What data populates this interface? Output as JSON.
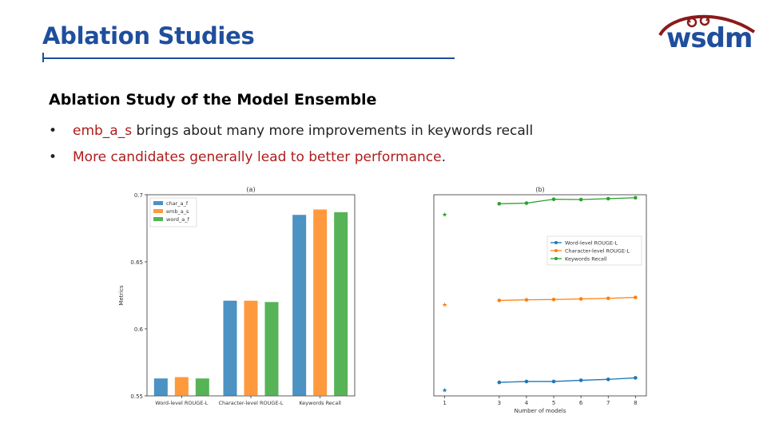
{
  "slide": {
    "title": "Ablation Studies",
    "subheading": "Ablation Study of the Model Ensemble",
    "bullets": [
      {
        "bullet": "•",
        "highlight": "emb_a_s",
        "text": " brings about many more improvements in keywords recall"
      },
      {
        "bullet": "•",
        "highlight": "More candidates generally lead to better performance",
        "text": "."
      }
    ],
    "logo_text": "wsdm"
  },
  "colors": {
    "title_blue": "#1f4e9c",
    "highlight_red": "#b01c1c",
    "blue": "#1f77b4",
    "orange": "#ff7f0e",
    "green": "#2ca02c"
  },
  "chart_data": [
    {
      "type": "bar",
      "title": "(a)",
      "ylabel": "Metrics",
      "xlabel": "",
      "categories": [
        "Word-level ROUGE-L",
        "Character-level ROUGE-L",
        "Keywords Recall"
      ],
      "ylim": [
        0.55,
        0.7
      ],
      "yticks": [
        "0.55",
        "0.6",
        "0.65",
        "0.7"
      ],
      "legend_position": "top-left",
      "series": [
        {
          "name": "char_a_f",
          "color": "#1f77b4",
          "values": [
            0.563,
            0.621,
            0.685
          ]
        },
        {
          "name": "emb_a_s",
          "color": "#ff7f0e",
          "values": [
            0.564,
            0.621,
            0.689
          ]
        },
        {
          "name": "word_a_f",
          "color": "#2ca02c",
          "values": [
            0.563,
            0.62,
            0.687
          ]
        }
      ]
    },
    {
      "type": "line",
      "title": "(b)",
      "xlabel": "Number of models",
      "ylabel": "",
      "x": [
        3,
        4,
        5,
        6,
        7,
        8
      ],
      "xticks": [
        "1",
        "3",
        "4",
        "5",
        "6",
        "7",
        "8"
      ],
      "legend_position": "center-right",
      "series": [
        {
          "name": "Word-level ROUGE-L",
          "color": "#1f77b4",
          "single_x": 1,
          "single": 0.12,
          "values": [
            0.145,
            0.148,
            0.148,
            0.152,
            0.155,
            0.16
          ]
        },
        {
          "name": "Character-level ROUGE-L",
          "color": "#ff7f0e",
          "single_x": 1,
          "single": 0.405,
          "values": [
            0.418,
            0.42,
            0.421,
            0.423,
            0.425,
            0.428
          ]
        },
        {
          "name": "Keywords Recall",
          "color": "#2ca02c",
          "single_x": 1,
          "single": 0.705,
          "values": [
            0.74,
            0.742,
            0.755,
            0.754,
            0.757,
            0.76
          ]
        }
      ]
    }
  ]
}
